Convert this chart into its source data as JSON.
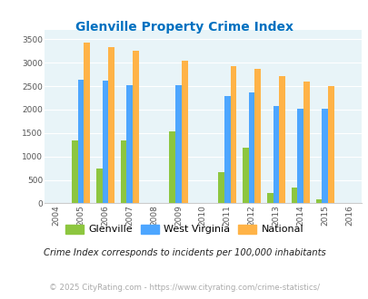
{
  "title": "Glenville Property Crime Index",
  "years": [
    2005,
    2006,
    2007,
    2009,
    2011,
    2012,
    2013,
    2014,
    2015
  ],
  "glenville": [
    1350,
    750,
    1350,
    1530,
    660,
    1180,
    220,
    340,
    90
  ],
  "west_virginia": [
    2630,
    2610,
    2530,
    2530,
    2280,
    2370,
    2080,
    2020,
    2020
  ],
  "national": [
    3420,
    3340,
    3260,
    3040,
    2920,
    2860,
    2720,
    2600,
    2500
  ],
  "glenville_color": "#8dc63f",
  "wv_color": "#4da6ff",
  "national_color": "#ffb347",
  "bg_color": "#e8f4f8",
  "title_color": "#0070c0",
  "xlim": [
    2003.5,
    2016.5
  ],
  "ylim": [
    0,
    3700
  ],
  "yticks": [
    0,
    500,
    1000,
    1500,
    2000,
    2500,
    3000,
    3500
  ],
  "xticks": [
    2004,
    2005,
    2006,
    2007,
    2008,
    2009,
    2010,
    2011,
    2012,
    2013,
    2014,
    2015,
    2016
  ],
  "footnote1": "Crime Index corresponds to incidents per 100,000 inhabitants",
  "footnote2": "© 2025 CityRating.com - https://www.cityrating.com/crime-statistics/",
  "bar_width": 0.25
}
